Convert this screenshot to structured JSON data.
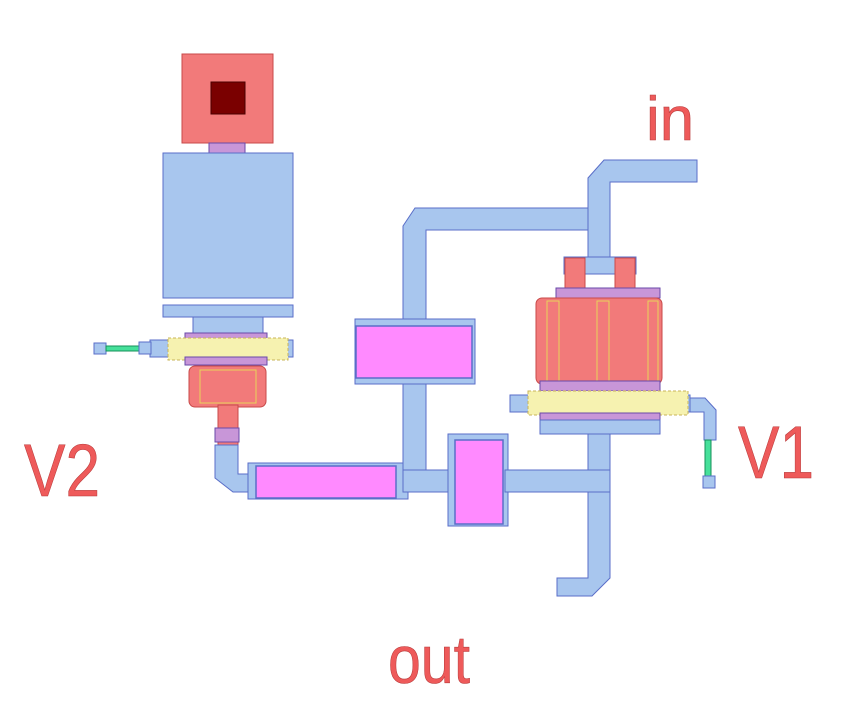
{
  "labels": {
    "in": "in",
    "out": "out",
    "v1": "V1",
    "v2": "V2"
  },
  "colors": {
    "metal": "#a8c6ee",
    "poly": "#f27a7a",
    "capacitor": "#ff8aff",
    "contact": "#7a0000",
    "implant": "#f6f2b0",
    "via": "#c896d8",
    "wire": "#46e09a",
    "label": "#ee5a5a"
  }
}
